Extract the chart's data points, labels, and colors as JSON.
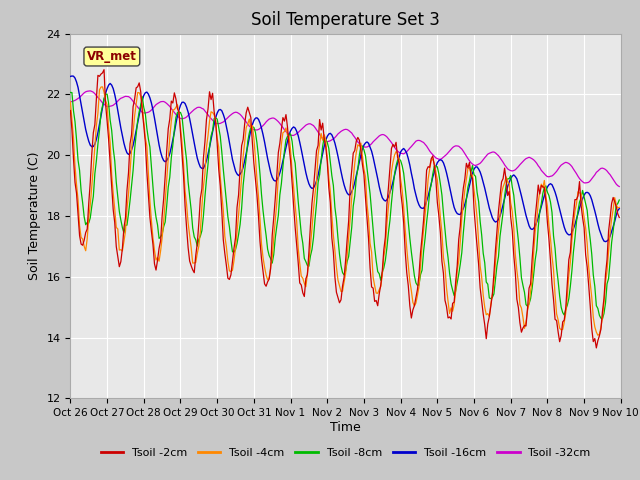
{
  "title": "Soil Temperature Set 3",
  "xlabel": "Time",
  "ylabel": "Soil Temperature (C)",
  "ylim": [
    12,
    24
  ],
  "yticks": [
    12,
    14,
    16,
    18,
    20,
    22,
    24
  ],
  "fig_bg_color": "#c8c8c8",
  "plot_bg_color": "#e8e8e8",
  "line_colors": {
    "Tsoil -2cm": "#cc0000",
    "Tsoil -4cm": "#ff8800",
    "Tsoil -8cm": "#00bb00",
    "Tsoil -16cm": "#0000cc",
    "Tsoil -32cm": "#cc00cc"
  },
  "annotation_text": "VR_met",
  "xtick_labels": [
    "Oct 26",
    "Oct 27",
    "Oct 28",
    "Oct 29",
    "Oct 30",
    "Oct 31",
    "Nov 1",
    "Nov 2",
    "Nov 3",
    "Nov 4",
    "Nov 5",
    "Nov 6",
    "Nov 7",
    "Nov 8",
    "Nov 9",
    "Nov 10"
  ],
  "grid_color": "#ffffff",
  "title_fontsize": 12,
  "tick_fontsize": 7.5
}
